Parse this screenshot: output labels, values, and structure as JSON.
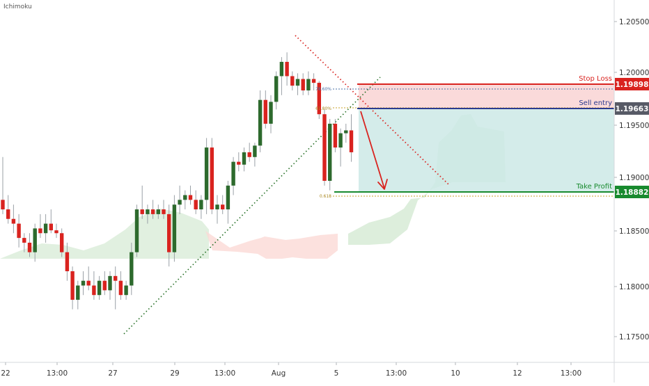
{
  "indicator_label": "Ichimoku",
  "colors": {
    "bull": "#2d6a2d",
    "bear": "#d9231f",
    "stop": "#d9231f",
    "entry": "#2b3a8f",
    "target": "#188a2e",
    "stop_zone": "#f9d4d4",
    "target_zone": "#cde9e6",
    "cloud_bull": "#d7ebd6",
    "cloud_bear": "#fbd9d6",
    "trend": "#1f6b1f",
    "down_trend": "#d9231f",
    "arrow": "#d9231f"
  },
  "levels": {
    "stop_loss": {
      "label": "Stop Loss",
      "price": "1.19898"
    },
    "sell_entry": {
      "label": "Sell entry",
      "price": "1.19663"
    },
    "take_profit": {
      "label": "Take Profit",
      "price": "1.18882"
    }
  },
  "fib_labels": [
    "78.60%",
    "61.80%",
    "0.618"
  ],
  "chart_data": {
    "type": "candlestick",
    "y_ticks": [
      "1.20500",
      "1.20000",
      "1.19500",
      "1.19000",
      "1.18500",
      "1.18000",
      "1.17500"
    ],
    "x_ticks": [
      "22",
      "13:00",
      "27",
      "29",
      "13:00",
      "Aug",
      "5",
      "13:00",
      "10",
      "12",
      "13:00"
    ],
    "ylim": [
      1.1705,
      1.2085
    ],
    "candles": [
      [
        1.1875,
        1.192,
        1.186,
        1.1865
      ],
      [
        1.1865,
        1.188,
        1.185,
        1.1855
      ],
      [
        1.1855,
        1.187,
        1.184,
        1.185
      ],
      [
        1.185,
        1.186,
        1.1825,
        1.1835
      ],
      [
        1.1835,
        1.184,
        1.182,
        1.183
      ],
      [
        1.183,
        1.184,
        1.1815,
        1.182
      ],
      [
        1.182,
        1.185,
        1.181,
        1.1845
      ],
      [
        1.1845,
        1.186,
        1.1835,
        1.184
      ],
      [
        1.184,
        1.186,
        1.183,
        1.185
      ],
      [
        1.185,
        1.1865,
        1.184,
        1.1843
      ],
      [
        1.1843,
        1.185,
        1.1835,
        1.184
      ],
      [
        1.184,
        1.1845,
        1.1815,
        1.182
      ],
      [
        1.182,
        1.183,
        1.179,
        1.18
      ],
      [
        1.18,
        1.1805,
        1.176,
        1.177
      ],
      [
        1.177,
        1.179,
        1.176,
        1.1785
      ],
      [
        1.1785,
        1.18,
        1.1775,
        1.179
      ],
      [
        1.179,
        1.1805,
        1.178,
        1.1785
      ],
      [
        1.1785,
        1.18,
        1.177,
        1.1775
      ],
      [
        1.1775,
        1.1795,
        1.177,
        1.179
      ],
      [
        1.179,
        1.18,
        1.1775,
        1.178
      ],
      [
        1.178,
        1.18,
        1.177,
        1.1795
      ],
      [
        1.1795,
        1.1805,
        1.176,
        1.179
      ],
      [
        1.179,
        1.18,
        1.177,
        1.1775
      ],
      [
        1.1775,
        1.179,
        1.177,
        1.1785
      ],
      [
        1.1785,
        1.183,
        1.1775,
        1.182
      ],
      [
        1.182,
        1.187,
        1.1815,
        1.1865
      ],
      [
        1.1865,
        1.189,
        1.1855,
        1.186
      ],
      [
        1.186,
        1.187,
        1.185,
        1.1865
      ],
      [
        1.1865,
        1.1875,
        1.1855,
        1.186
      ],
      [
        1.186,
        1.187,
        1.1855,
        1.1865
      ],
      [
        1.1865,
        1.1875,
        1.1855,
        1.186
      ],
      [
        1.186,
        1.187,
        1.1805,
        1.182
      ],
      [
        1.182,
        1.188,
        1.181,
        1.187
      ],
      [
        1.187,
        1.189,
        1.186,
        1.1875
      ],
      [
        1.1875,
        1.1885,
        1.1865,
        1.188
      ],
      [
        1.188,
        1.189,
        1.187,
        1.1875
      ],
      [
        1.1875,
        1.1885,
        1.186,
        1.1865
      ],
      [
        1.1865,
        1.188,
        1.1855,
        1.1875
      ],
      [
        1.1875,
        1.194,
        1.186,
        1.193
      ],
      [
        1.193,
        1.194,
        1.186,
        1.1865
      ],
      [
        1.1865,
        1.188,
        1.185,
        1.187
      ],
      [
        1.187,
        1.188,
        1.186,
        1.1865
      ],
      [
        1.1865,
        1.1895,
        1.185,
        1.189
      ],
      [
        1.189,
        1.192,
        1.188,
        1.1915
      ],
      [
        1.1915,
        1.1925,
        1.1905,
        1.1912
      ],
      [
        1.1912,
        1.193,
        1.1905,
        1.1925
      ],
      [
        1.1925,
        1.1935,
        1.1915,
        1.192
      ],
      [
        1.192,
        1.1935,
        1.191,
        1.1932
      ],
      [
        1.1932,
        1.199,
        1.1925,
        1.198
      ],
      [
        1.198,
        1.199,
        1.195,
        1.1955
      ],
      [
        1.1955,
        1.1985,
        1.1945,
        1.1978
      ],
      [
        1.1978,
        1.201,
        1.197,
        1.2005
      ],
      [
        1.2005,
        1.2025,
        1.1985,
        1.202
      ],
      [
        1.202,
        1.203,
        1.1995,
        1.2005
      ],
      [
        1.2005,
        1.201,
        1.199,
        1.1995
      ],
      [
        1.1995,
        1.2008,
        1.1985,
        1.2002
      ],
      [
        1.2002,
        1.2008,
        1.1985,
        1.199
      ],
      [
        1.199,
        1.201,
        1.1985,
        1.2002
      ],
      [
        1.2002,
        1.2008,
        1.199,
        1.1998
      ],
      [
        1.1998,
        1.2,
        1.196,
        1.1965
      ],
      [
        1.1965,
        1.197,
        1.189,
        1.1895
      ],
      [
        1.1895,
        1.196,
        1.1885,
        1.1955
      ],
      [
        1.1955,
        1.196,
        1.1925,
        1.193
      ],
      [
        1.193,
        1.195,
        1.191,
        1.1945
      ],
      [
        1.1945,
        1.1955,
        1.1935,
        1.1948
      ],
      [
        1.1948,
        1.1965,
        1.1915,
        1.1925
      ]
    ]
  }
}
